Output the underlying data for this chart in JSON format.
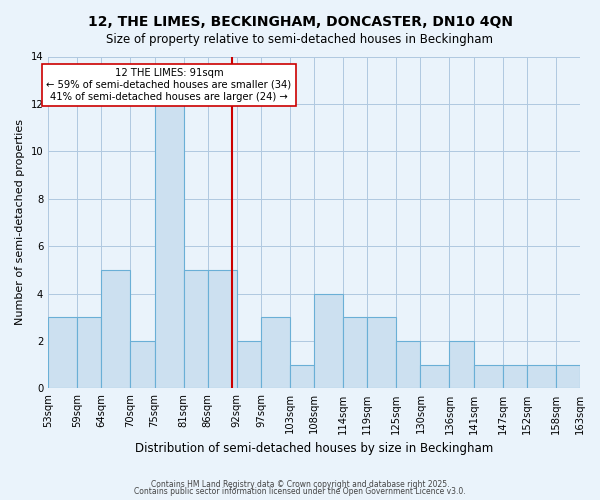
{
  "title": "12, THE LIMES, BECKINGHAM, DONCASTER, DN10 4QN",
  "subtitle": "Size of property relative to semi-detached houses in Beckingham",
  "xlabel": "Distribution of semi-detached houses by size in Beckingham",
  "ylabel": "Number of semi-detached properties",
  "bin_labels": [
    "53sqm",
    "59sqm",
    "64sqm",
    "70sqm",
    "75sqm",
    "81sqm",
    "86sqm",
    "92sqm",
    "97sqm",
    "103sqm",
    "108sqm",
    "114sqm",
    "119sqm",
    "125sqm",
    "130sqm",
    "136sqm",
    "141sqm",
    "147sqm",
    "152sqm",
    "158sqm",
    "163sqm"
  ],
  "bin_edges": [
    53,
    59,
    64,
    70,
    75,
    81,
    86,
    92,
    97,
    103,
    108,
    114,
    119,
    125,
    130,
    136,
    141,
    147,
    152,
    158,
    163
  ],
  "counts": [
    3,
    3,
    5,
    2,
    12,
    5,
    5,
    2,
    3,
    1,
    4,
    3,
    3,
    2,
    1,
    2,
    1,
    1,
    1,
    1
  ],
  "bar_color": "#cce0f0",
  "bar_edge_color": "#6aafd6",
  "grid_color": "#b0c8e0",
  "background_color": "#eaf3fb",
  "ref_line_x": 91,
  "ref_line_color": "#cc0000",
  "annotation_line1": "12 THE LIMES: 91sqm",
  "annotation_line2": "← 59% of semi-detached houses are smaller (34)",
  "annotation_line3": "41% of semi-detached houses are larger (24) →",
  "annotation_box_color": "#ffffff",
  "annotation_box_edge_color": "#cc0000",
  "ylim": [
    0,
    14
  ],
  "yticks": [
    0,
    2,
    4,
    6,
    8,
    10,
    12,
    14
  ],
  "footer1": "Contains HM Land Registry data © Crown copyright and database right 2025.",
  "footer2": "Contains public sector information licensed under the Open Government Licence v3.0."
}
